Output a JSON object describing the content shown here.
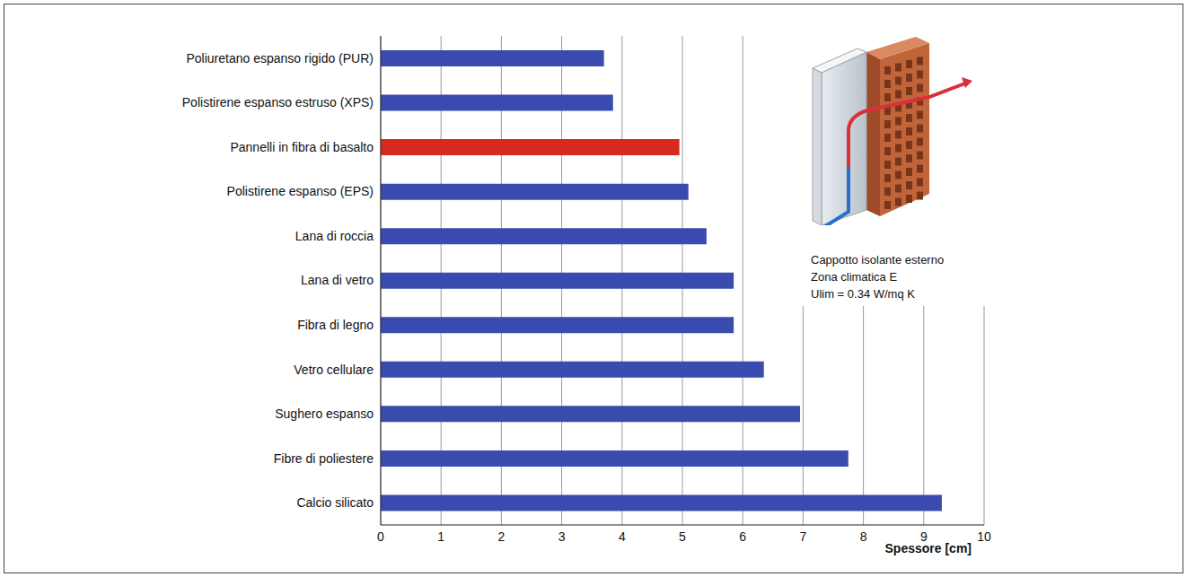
{
  "chart_data": {
    "type": "bar",
    "orientation": "horizontal",
    "categories": [
      "Poliuretano espanso rigido (PUR)",
      "Polistirene espanso estruso (XPS)",
      "Pannelli in fibra di basalto",
      "Polistirene espanso (EPS)",
      "Lana di roccia",
      "Lana di vetro",
      "Fibra di legno",
      "Vetro cellulare",
      "Sughero espanso",
      "Fibre di poliestere",
      "Calcio silicato"
    ],
    "values": [
      3.7,
      3.85,
      4.95,
      5.1,
      5.4,
      5.85,
      5.85,
      6.35,
      6.95,
      7.75,
      9.3
    ],
    "colors": [
      "#3a4bb0",
      "#3a4bb0",
      "#d42a1f",
      "#3a4bb0",
      "#3a4bb0",
      "#3a4bb0",
      "#3a4bb0",
      "#3a4bb0",
      "#3a4bb0",
      "#3a4bb0",
      "#3a4bb0"
    ],
    "x_label": "Spessore [cm]",
    "xlim": [
      0,
      10
    ],
    "xticks": [
      0,
      1,
      2,
      3,
      4,
      5,
      6,
      7,
      8,
      9,
      10
    ],
    "grid": true,
    "annotations": [
      "Cappotto isolante esterno",
      "Zona climatica E",
      "Ulim = 0.34 W/mq K"
    ]
  }
}
